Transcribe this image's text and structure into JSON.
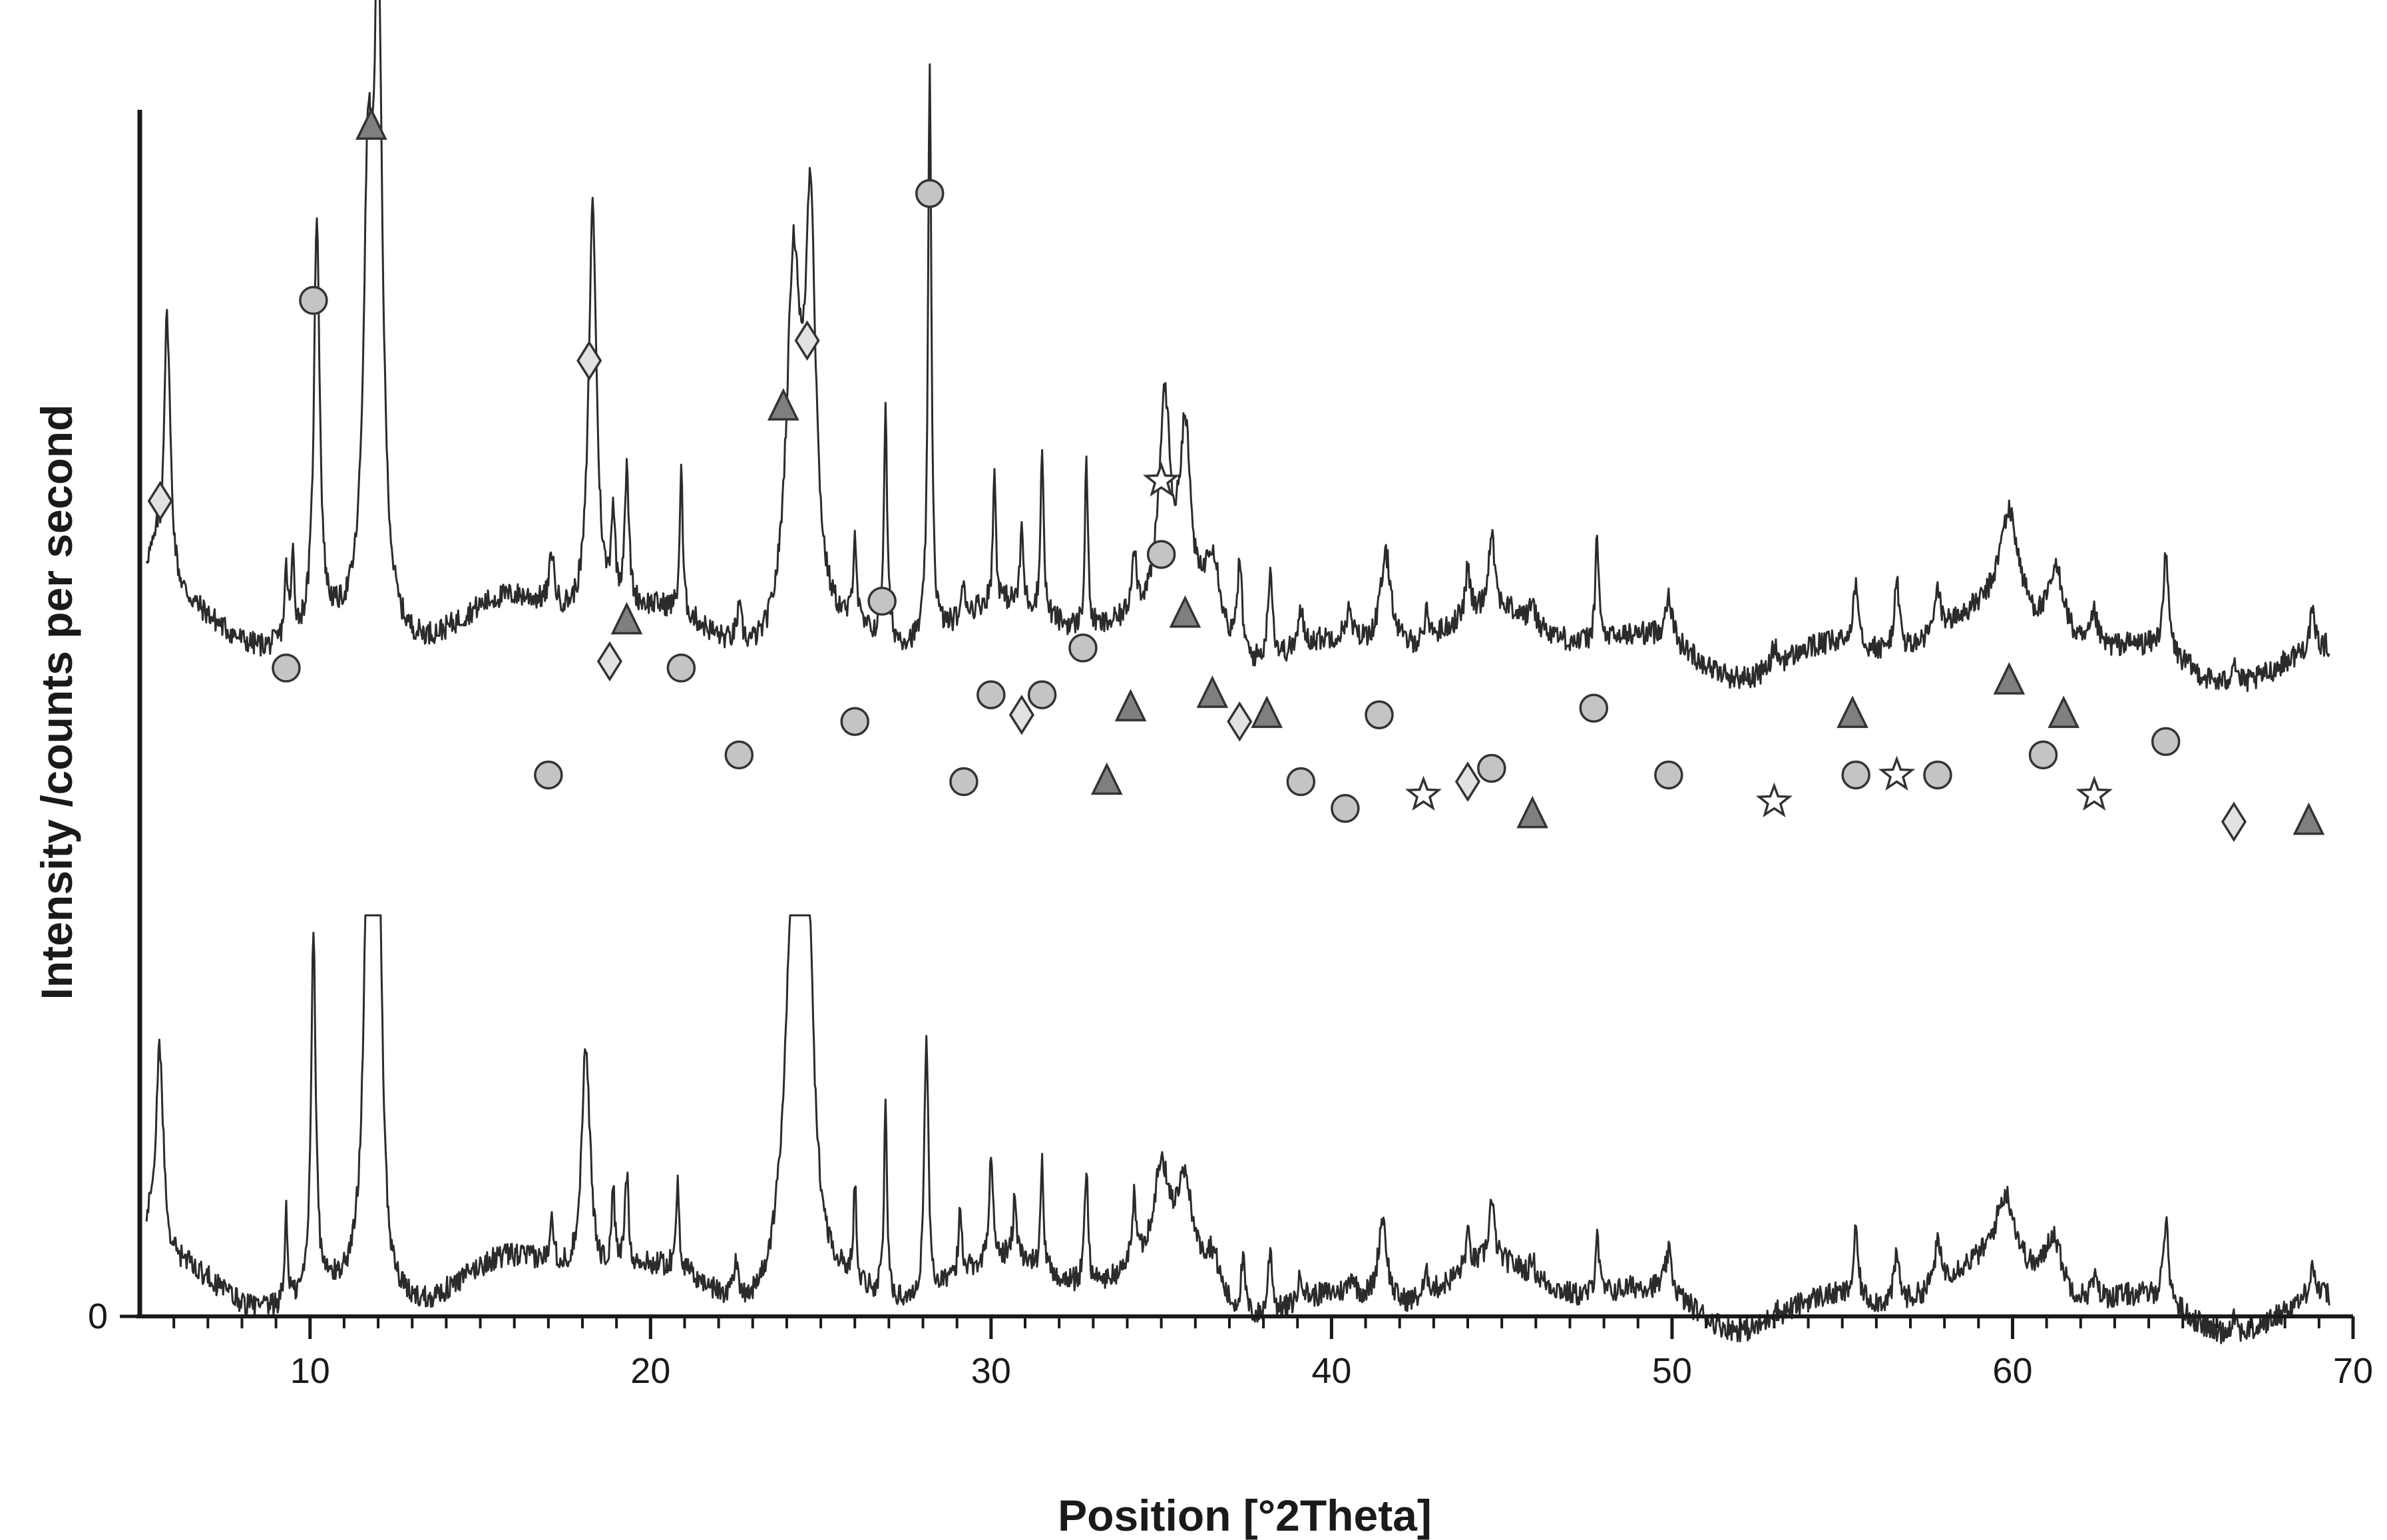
{
  "chart_data": {
    "type": "line",
    "title": "",
    "xlabel": "Position [°2Theta]",
    "ylabel": "Intensity /counts per second",
    "xlim": [
      5,
      70
    ],
    "x_ticks": [
      10,
      20,
      30,
      40,
      50,
      60,
      70
    ],
    "y_ticks": [
      0
    ],
    "grid": false,
    "legend": "none",
    "colors": {
      "pattern": "#2b2b2b",
      "circle": "#c4c4c4",
      "triangle": "#7f7f7f",
      "diamond": "#e2e2e2",
      "star": "#ffffff",
      "axis": "#1a1a1a"
    },
    "series": [
      {
        "baseline": 0.46,
        "offset": 0.58,
        "tilt": -0.05,
        "peak_scale": 1.0,
        "clip": 1.56,
        "points": [
          [
            5.2,
            0.09
          ],
          [
            5.4,
            0.1
          ],
          [
            6.0,
            0.06
          ]
        ],
        "peaks": [
          [
            5.8,
            0.42,
            0.12
          ],
          [
            9.3,
            0.1,
            0.06
          ],
          [
            9.5,
            0.12,
            0.05
          ],
          [
            10.2,
            0.62,
            0.1
          ],
          [
            11.7,
            0.6,
            0.15
          ],
          [
            12.0,
            0.95,
            0.15
          ],
          [
            17.1,
            0.08,
            0.08
          ],
          [
            18.3,
            0.62,
            0.14
          ],
          [
            18.9,
            0.14,
            0.07
          ],
          [
            19.3,
            0.2,
            0.08
          ],
          [
            20.9,
            0.22,
            0.05
          ],
          [
            22.6,
            0.05,
            0.1
          ],
          [
            24.2,
            0.55,
            0.25
          ],
          [
            24.7,
            0.6,
            0.18
          ],
          [
            26.0,
            0.14,
            0.06
          ],
          [
            26.9,
            0.34,
            0.06
          ],
          [
            28.2,
            0.85,
            0.06
          ],
          [
            29.2,
            0.05,
            0.06
          ],
          [
            30.1,
            0.2,
            0.05
          ],
          [
            30.9,
            0.12,
            0.05
          ],
          [
            31.5,
            0.26,
            0.05
          ],
          [
            32.8,
            0.26,
            0.05
          ],
          [
            34.2,
            0.1,
            0.08
          ],
          [
            35.1,
            0.32,
            0.2
          ],
          [
            35.7,
            0.28,
            0.2
          ],
          [
            36.5,
            0.14,
            0.3
          ],
          [
            37.3,
            0.14,
            0.08
          ],
          [
            38.2,
            0.14,
            0.08
          ],
          [
            39.1,
            0.05,
            0.1
          ],
          [
            40.5,
            0.04,
            0.1
          ],
          [
            41.6,
            0.14,
            0.2
          ],
          [
            42.8,
            0.04,
            0.1
          ],
          [
            44.0,
            0.07,
            0.08
          ],
          [
            44.7,
            0.12,
            0.1
          ],
          [
            45.9,
            0.04,
            0.06
          ],
          [
            47.8,
            0.16,
            0.06
          ],
          [
            49.9,
            0.07,
            0.12
          ],
          [
            53.0,
            0.03,
            0.1
          ],
          [
            55.4,
            0.1,
            0.1
          ],
          [
            56.6,
            0.1,
            0.1
          ],
          [
            57.8,
            0.06,
            0.12
          ],
          [
            59.9,
            0.16,
            0.35
          ],
          [
            61.3,
            0.11,
            0.3
          ],
          [
            62.4,
            0.05,
            0.12
          ],
          [
            64.5,
            0.14,
            0.1
          ],
          [
            66.5,
            0.04,
            0.1
          ],
          [
            68.8,
            0.05,
            0.1
          ]
        ]
      },
      {
        "baseline": 0.05,
        "offset": 0.0,
        "tilt": -0.03,
        "peak_scale": 1.0,
        "clip": 0.6,
        "points": [
          [
            5.0,
            0.12
          ],
          [
            5.3,
            0.12
          ]
        ],
        "peaks": [
          [
            5.6,
            0.3,
            0.12
          ],
          [
            9.3,
            0.14,
            0.05
          ],
          [
            10.1,
            0.55,
            0.08
          ],
          [
            11.7,
            0.65,
            0.15
          ],
          [
            12.0,
            0.7,
            0.12
          ],
          [
            17.1,
            0.08,
            0.07
          ],
          [
            18.1,
            0.35,
            0.15
          ],
          [
            18.9,
            0.12,
            0.06
          ],
          [
            19.3,
            0.14,
            0.07
          ],
          [
            20.8,
            0.14,
            0.05
          ],
          [
            22.5,
            0.05,
            0.1
          ],
          [
            24.2,
            0.6,
            0.3
          ],
          [
            24.6,
            0.5,
            0.2
          ],
          [
            26.0,
            0.15,
            0.05
          ],
          [
            26.9,
            0.3,
            0.05
          ],
          [
            28.1,
            0.4,
            0.07
          ],
          [
            29.1,
            0.1,
            0.06
          ],
          [
            30.0,
            0.16,
            0.06
          ],
          [
            30.7,
            0.1,
            0.06
          ],
          [
            31.5,
            0.16,
            0.05
          ],
          [
            32.8,
            0.18,
            0.06
          ],
          [
            34.2,
            0.1,
            0.08
          ],
          [
            35.0,
            0.15,
            0.3
          ],
          [
            35.7,
            0.14,
            0.3
          ],
          [
            36.5,
            0.07,
            0.3
          ],
          [
            37.4,
            0.08,
            0.08
          ],
          [
            38.2,
            0.1,
            0.08
          ],
          [
            39.1,
            0.04,
            0.1
          ],
          [
            40.6,
            0.03,
            0.1
          ],
          [
            41.5,
            0.13,
            0.15
          ],
          [
            42.8,
            0.03,
            0.1
          ],
          [
            44.0,
            0.05,
            0.08
          ],
          [
            44.7,
            0.09,
            0.1
          ],
          [
            45.9,
            0.03,
            0.06
          ],
          [
            47.8,
            0.1,
            0.06
          ],
          [
            49.9,
            0.06,
            0.12
          ],
          [
            53.0,
            0.02,
            0.1
          ],
          [
            55.4,
            0.1,
            0.08
          ],
          [
            56.6,
            0.07,
            0.1
          ],
          [
            57.8,
            0.06,
            0.12
          ],
          [
            59.8,
            0.11,
            0.35
          ],
          [
            61.2,
            0.09,
            0.3
          ],
          [
            62.4,
            0.03,
            0.12
          ],
          [
            64.5,
            0.12,
            0.1
          ],
          [
            66.5,
            0.03,
            0.1
          ],
          [
            68.8,
            0.05,
            0.1
          ]
        ]
      }
    ],
    "annotations": [
      {
        "x": 5.6,
        "y": 1.22,
        "marker": "diamond"
      },
      {
        "x": 9.3,
        "y": 0.97,
        "marker": "circle"
      },
      {
        "x": 10.1,
        "y": 1.52,
        "marker": "circle"
      },
      {
        "x": 11.8,
        "y": 1.78,
        "marker": "triangle"
      },
      {
        "x": 17.0,
        "y": 0.81,
        "marker": "circle"
      },
      {
        "x": 18.2,
        "y": 1.43,
        "marker": "diamond"
      },
      {
        "x": 18.8,
        "y": 0.98,
        "marker": "diamond"
      },
      {
        "x": 19.3,
        "y": 1.04,
        "marker": "triangle"
      },
      {
        "x": 20.9,
        "y": 0.97,
        "marker": "circle"
      },
      {
        "x": 22.6,
        "y": 0.84,
        "marker": "circle"
      },
      {
        "x": 23.9,
        "y": 1.36,
        "marker": "triangle"
      },
      {
        "x": 24.6,
        "y": 1.46,
        "marker": "diamond"
      },
      {
        "x": 26.0,
        "y": 0.89,
        "marker": "circle"
      },
      {
        "x": 26.8,
        "y": 1.07,
        "marker": "circle"
      },
      {
        "x": 28.2,
        "y": 1.68,
        "marker": "circle"
      },
      {
        "x": 29.2,
        "y": 0.8,
        "marker": "circle"
      },
      {
        "x": 30.0,
        "y": 0.93,
        "marker": "circle"
      },
      {
        "x": 30.9,
        "y": 0.9,
        "marker": "diamond"
      },
      {
        "x": 31.5,
        "y": 0.93,
        "marker": "circle"
      },
      {
        "x": 32.7,
        "y": 1.0,
        "marker": "circle"
      },
      {
        "x": 33.4,
        "y": 0.8,
        "marker": "triangle"
      },
      {
        "x": 34.1,
        "y": 0.91,
        "marker": "triangle"
      },
      {
        "x": 35.0,
        "y": 1.25,
        "marker": "star"
      },
      {
        "x": 35.0,
        "y": 1.14,
        "marker": "circle"
      },
      {
        "x": 35.7,
        "y": 1.05,
        "marker": "triangle"
      },
      {
        "x": 36.5,
        "y": 0.93,
        "marker": "triangle"
      },
      {
        "x": 37.3,
        "y": 0.89,
        "marker": "diamond"
      },
      {
        "x": 38.1,
        "y": 0.9,
        "marker": "triangle"
      },
      {
        "x": 39.1,
        "y": 0.8,
        "marker": "circle"
      },
      {
        "x": 40.4,
        "y": 0.76,
        "marker": "circle"
      },
      {
        "x": 41.4,
        "y": 0.9,
        "marker": "circle"
      },
      {
        "x": 42.7,
        "y": 0.78,
        "marker": "star"
      },
      {
        "x": 44.0,
        "y": 0.8,
        "marker": "diamond"
      },
      {
        "x": 44.7,
        "y": 0.82,
        "marker": "circle"
      },
      {
        "x": 45.9,
        "y": 0.75,
        "marker": "triangle"
      },
      {
        "x": 47.7,
        "y": 0.91,
        "marker": "circle"
      },
      {
        "x": 49.9,
        "y": 0.81,
        "marker": "circle"
      },
      {
        "x": 53.0,
        "y": 0.77,
        "marker": "star"
      },
      {
        "x": 55.3,
        "y": 0.9,
        "marker": "triangle"
      },
      {
        "x": 55.4,
        "y": 0.81,
        "marker": "circle"
      },
      {
        "x": 56.6,
        "y": 0.81,
        "marker": "star"
      },
      {
        "x": 57.8,
        "y": 0.81,
        "marker": "circle"
      },
      {
        "x": 59.9,
        "y": 0.95,
        "marker": "triangle"
      },
      {
        "x": 60.9,
        "y": 0.84,
        "marker": "circle"
      },
      {
        "x": 61.5,
        "y": 0.9,
        "marker": "triangle"
      },
      {
        "x": 62.4,
        "y": 0.78,
        "marker": "star"
      },
      {
        "x": 64.5,
        "y": 0.86,
        "marker": "circle"
      },
      {
        "x": 66.5,
        "y": 0.74,
        "marker": "diamond"
      },
      {
        "x": 68.7,
        "y": 0.74,
        "marker": "triangle"
      }
    ]
  }
}
